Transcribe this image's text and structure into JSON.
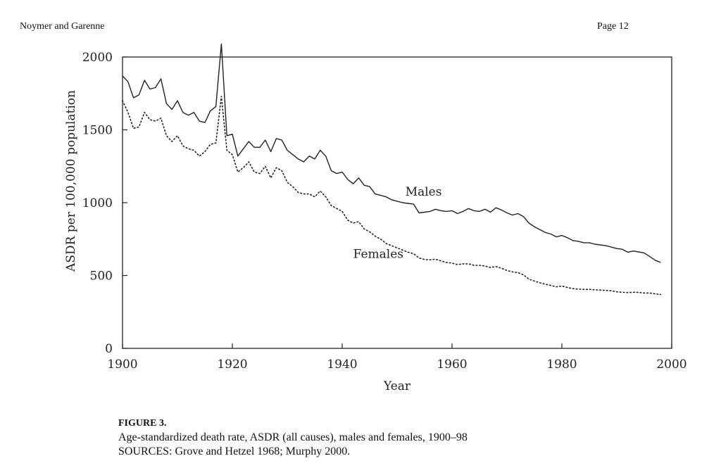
{
  "page_header": {
    "authors": "Noymer and Garenne",
    "page": "Page 12"
  },
  "caption": {
    "figure_label": "FIGURE 3.",
    "description": "Age-standardized death rate, ASDR (all causes), males and females, 1900–98",
    "sources": "SOURCES: Grove and Hetzel 1968; Murphy 2000."
  },
  "chart_data": {
    "type": "line",
    "title": "",
    "xlabel": "Year",
    "ylabel": "ASDR per 100,000 population",
    "xlim": [
      1900,
      2000
    ],
    "ylim": [
      0,
      2000
    ],
    "x_ticks": [
      1900,
      1920,
      1940,
      1960,
      1980,
      2000
    ],
    "y_ticks": [
      0,
      500,
      1000,
      1500,
      2000
    ],
    "grid": false,
    "legend": "none",
    "series": [
      {
        "name": "Males",
        "style": "solid",
        "label_at": [
          1951.5,
          1048
        ],
        "x": [
          1900,
          1901,
          1902,
          1903,
          1904,
          1905,
          1906,
          1907,
          1908,
          1909,
          1910,
          1911,
          1912,
          1913,
          1914,
          1915,
          1916,
          1917,
          1918,
          1919,
          1920,
          1921,
          1922,
          1923,
          1924,
          1925,
          1926,
          1927,
          1928,
          1929,
          1930,
          1931,
          1932,
          1933,
          1934,
          1935,
          1936,
          1937,
          1938,
          1939,
          1940,
          1941,
          1942,
          1943,
          1944,
          1945,
          1946,
          1947,
          1948,
          1949,
          1950,
          1951,
          1952,
          1953,
          1954,
          1955,
          1956,
          1957,
          1958,
          1959,
          1960,
          1961,
          1962,
          1963,
          1964,
          1965,
          1966,
          1967,
          1968,
          1969,
          1970,
          1971,
          1972,
          1973,
          1974,
          1975,
          1976,
          1977,
          1978,
          1979,
          1980,
          1981,
          1982,
          1983,
          1984,
          1985,
          1986,
          1987,
          1988,
          1989,
          1990,
          1991,
          1992,
          1993,
          1994,
          1995,
          1996,
          1997,
          1998
        ],
        "values": [
          1870,
          1830,
          1720,
          1740,
          1840,
          1780,
          1790,
          1850,
          1680,
          1640,
          1700,
          1620,
          1600,
          1620,
          1560,
          1550,
          1630,
          1660,
          2090,
          1460,
          1470,
          1320,
          1370,
          1420,
          1380,
          1380,
          1430,
          1350,
          1440,
          1430,
          1360,
          1330,
          1300,
          1280,
          1320,
          1300,
          1360,
          1320,
          1220,
          1200,
          1210,
          1160,
          1130,
          1170,
          1120,
          1110,
          1060,
          1050,
          1040,
          1020,
          1010,
          1000,
          995,
          990,
          930,
          935,
          940,
          955,
          945,
          940,
          945,
          925,
          940,
          960,
          945,
          940,
          955,
          935,
          965,
          950,
          930,
          915,
          925,
          905,
          860,
          835,
          815,
          795,
          785,
          765,
          775,
          760,
          740,
          735,
          725,
          725,
          715,
          710,
          705,
          695,
          685,
          680,
          660,
          668,
          662,
          655,
          630,
          605,
          590
        ]
      },
      {
        "name": "Females",
        "style": "dotted",
        "label_at": [
          1942,
          620
        ],
        "x": [
          1900,
          1901,
          1902,
          1903,
          1904,
          1905,
          1906,
          1907,
          1908,
          1909,
          1910,
          1911,
          1912,
          1913,
          1914,
          1915,
          1916,
          1917,
          1918,
          1919,
          1920,
          1921,
          1922,
          1923,
          1924,
          1925,
          1926,
          1927,
          1928,
          1929,
          1930,
          1931,
          1932,
          1933,
          1934,
          1935,
          1936,
          1937,
          1938,
          1939,
          1940,
          1941,
          1942,
          1943,
          1944,
          1945,
          1946,
          1947,
          1948,
          1949,
          1950,
          1951,
          1952,
          1953,
          1954,
          1955,
          1956,
          1957,
          1958,
          1959,
          1960,
          1961,
          1962,
          1963,
          1964,
          1965,
          1966,
          1967,
          1968,
          1969,
          1970,
          1971,
          1972,
          1973,
          1974,
          1975,
          1976,
          1977,
          1978,
          1979,
          1980,
          1981,
          1982,
          1983,
          1984,
          1985,
          1986,
          1987,
          1988,
          1989,
          1990,
          1991,
          1992,
          1993,
          1994,
          1995,
          1996,
          1997,
          1998
        ],
        "values": [
          1700,
          1620,
          1510,
          1520,
          1620,
          1570,
          1560,
          1580,
          1460,
          1420,
          1460,
          1390,
          1370,
          1360,
          1320,
          1350,
          1400,
          1410,
          1730,
          1360,
          1330,
          1210,
          1240,
          1280,
          1210,
          1200,
          1250,
          1170,
          1240,
          1220,
          1140,
          1110,
          1070,
          1060,
          1060,
          1040,
          1080,
          1040,
          980,
          960,
          940,
          880,
          860,
          870,
          820,
          800,
          770,
          750,
          720,
          705,
          690,
          675,
          660,
          650,
          620,
          610,
          608,
          612,
          600,
          590,
          585,
          575,
          580,
          580,
          570,
          570,
          565,
          555,
          562,
          550,
          535,
          525,
          520,
          505,
          475,
          462,
          450,
          440,
          432,
          422,
          428,
          418,
          410,
          407,
          405,
          405,
          402,
          400,
          398,
          395,
          388,
          385,
          383,
          385,
          384,
          380,
          380,
          374,
          370
        ]
      }
    ]
  }
}
